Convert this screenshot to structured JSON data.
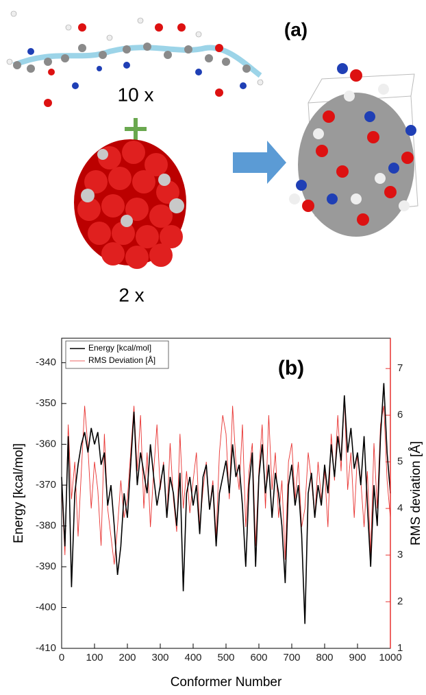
{
  "panel_a": {
    "label": "(a)",
    "peptide_count": "10 x",
    "cluster_count": "2 x"
  },
  "chart_data": {
    "type": "line",
    "annotation": "(b)",
    "x_label": "Conformer Number",
    "y_label": "Energy [kcal/mol]",
    "y2_label": "RMS deviation [Å]",
    "legend": "top-left",
    "x": [
      0,
      10,
      20,
      30,
      40,
      50,
      60,
      70,
      80,
      90,
      100,
      110,
      120,
      130,
      140,
      150,
      160,
      170,
      180,
      190,
      200,
      210,
      220,
      230,
      240,
      250,
      260,
      270,
      280,
      290,
      300,
      310,
      320,
      330,
      340,
      350,
      360,
      370,
      380,
      390,
      400,
      410,
      420,
      430,
      440,
      450,
      460,
      470,
      480,
      490,
      500,
      510,
      520,
      530,
      540,
      550,
      560,
      570,
      580,
      590,
      600,
      610,
      620,
      630,
      640,
      650,
      660,
      670,
      680,
      690,
      700,
      710,
      720,
      730,
      740,
      750,
      760,
      770,
      780,
      790,
      800,
      810,
      820,
      830,
      840,
      850,
      860,
      870,
      880,
      890,
      900,
      910,
      920,
      930,
      940,
      950,
      960,
      970,
      980,
      990,
      1000
    ],
    "series": [
      {
        "name": "Energy [kcal/mol]",
        "color": "#000000",
        "values": [
          -368,
          -385,
          -358,
          -395,
          -372,
          -365,
          -360,
          -357,
          -362,
          -356,
          -360,
          -357,
          -365,
          -362,
          -375,
          -370,
          -380,
          -392,
          -385,
          -372,
          -378,
          -365,
          -352,
          -370,
          -362,
          -367,
          -372,
          -360,
          -368,
          -375,
          -370,
          -365,
          -378,
          -368,
          -372,
          -380,
          -367,
          -396,
          -372,
          -368,
          -375,
          -370,
          -382,
          -368,
          -365,
          -376,
          -370,
          -385,
          -372,
          -368,
          -364,
          -372,
          -360,
          -368,
          -365,
          -375,
          -390,
          -370,
          -362,
          -390,
          -368,
          -360,
          -372,
          -365,
          -378,
          -367,
          -372,
          -380,
          -394,
          -370,
          -365,
          -375,
          -370,
          -382,
          -404,
          -372,
          -367,
          -378,
          -370,
          -375,
          -365,
          -372,
          -360,
          -368,
          -358,
          -364,
          -348,
          -362,
          -356,
          -366,
          -362,
          -370,
          -358,
          -375,
          -390,
          -370,
          -380,
          -358,
          -345,
          -362,
          -372
        ]
      },
      {
        "name": "RMS Deviation [Å]",
        "color": "#e8312f",
        "axis": "y2",
        "values": [
          4.5,
          3.0,
          5.8,
          4.2,
          5.0,
          3.4,
          4.8,
          6.2,
          5.3,
          4.0,
          5.0,
          4.4,
          3.2,
          5.6,
          4.0,
          3.4,
          2.8,
          3.6,
          4.6,
          3.8,
          4.2,
          5.2,
          6.2,
          4.8,
          6.0,
          4.0,
          5.2,
          3.6,
          4.8,
          5.8,
          4.4,
          5.0,
          3.8,
          5.4,
          4.2,
          3.5,
          5.6,
          4.0,
          4.8,
          3.9,
          4.6,
          5.2,
          3.6,
          4.4,
          5.0,
          4.0,
          4.6,
          3.4,
          5.2,
          6.0,
          5.6,
          4.2,
          6.2,
          5.0,
          4.4,
          5.8,
          3.6,
          4.8,
          5.4,
          3.2,
          4.8,
          5.8,
          4.0,
          6.0,
          4.4,
          5.2,
          3.8,
          4.6,
          2.9,
          5.0,
          5.4,
          4.2,
          5.0,
          3.6,
          4.0,
          5.2,
          4.6,
          3.8,
          5.0,
          4.2,
          4.8,
          3.6,
          5.6,
          4.6,
          6.0,
          4.8,
          6.4,
          4.4,
          5.2,
          3.8,
          5.2,
          4.6,
          3.6,
          4.8,
          3.0,
          5.4,
          4.0,
          5.8,
          6.2,
          4.6,
          3.8
        ]
      }
    ],
    "xlim": [
      0,
      1000
    ],
    "xticks": [
      0,
      100,
      200,
      300,
      400,
      500,
      600,
      700,
      800,
      900,
      1000
    ],
    "ylim": [
      -410,
      -334
    ],
    "yticks": [
      -410,
      -400,
      -390,
      -380,
      -370,
      -360,
      -350,
      -340
    ],
    "y2lim": [
      1,
      7.65
    ],
    "y2ticks": [
      1,
      2,
      3,
      4,
      5,
      6,
      7
    ]
  }
}
